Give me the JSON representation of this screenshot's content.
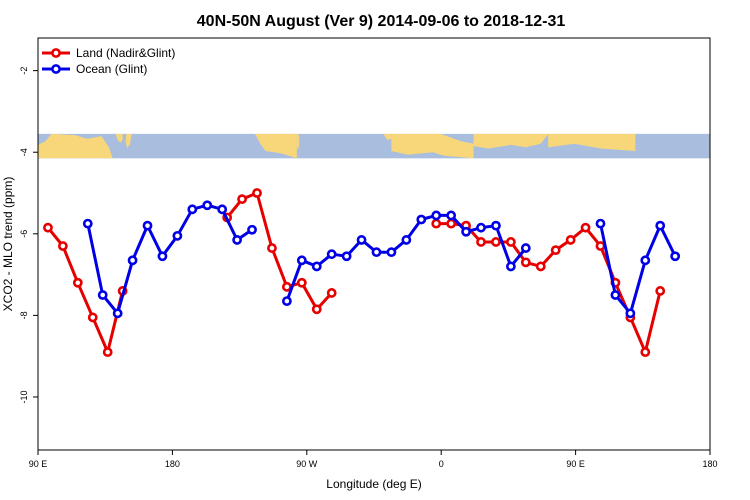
{
  "chart_data": {
    "type": "line",
    "title": "40N-50N August (Ver 9)   2014-09-06 to 2018-12-31",
    "xlabel": "Longitude (deg E)",
    "ylabel": "XCO2 - MLO trend (ppm)",
    "xlim": [
      -90,
      180
    ],
    "ylim": [
      -11.3,
      -1.2
    ],
    "x_ticks": [
      {
        "value": -90,
        "label": "90 E"
      },
      {
        "value": -36,
        "label": "180"
      },
      {
        "value": 18,
        "label": "90 W"
      },
      {
        "value": 72,
        "label": "0"
      },
      {
        "value": 126,
        "label": "90 E"
      },
      {
        "value": 180,
        "label": "180"
      }
    ],
    "y_ticks": [
      {
        "value": -2,
        "label": "-2"
      },
      {
        "value": -4,
        "label": "-4"
      },
      {
        "value": -6,
        "label": "-6"
      },
      {
        "value": -8,
        "label": "-8"
      },
      {
        "value": -10,
        "label": "-10"
      }
    ],
    "map_strip": {
      "y_range": [
        -3.55,
        -4.15
      ],
      "ocean_color": "#a9bede",
      "land_color": "#f7d77a"
    },
    "legend": {
      "position": "top-left"
    },
    "series": [
      {
        "name": "Land (Nadir&Glint)",
        "color": "#e60000",
        "segments": [
          [
            [
              -86,
              -5.85
            ],
            [
              -80,
              -6.3
            ],
            [
              -74,
              -7.2
            ],
            [
              -68,
              -8.05
            ],
            [
              -62,
              -8.9
            ],
            [
              -56,
              -7.4
            ]
          ],
          [
            [
              -14,
              -5.6
            ],
            [
              -8,
              -5.15
            ],
            [
              -2,
              -5.0
            ],
            [
              4,
              -6.35
            ],
            [
              10,
              -7.3
            ],
            [
              16,
              -7.2
            ],
            [
              22,
              -7.85
            ],
            [
              28,
              -7.45
            ]
          ],
          [
            [
              70,
              -5.75
            ],
            [
              76,
              -5.75
            ],
            [
              82,
              -5.8
            ],
            [
              88,
              -6.2
            ],
            [
              94,
              -6.2
            ],
            [
              100,
              -6.2
            ],
            [
              106,
              -6.7
            ],
            [
              112,
              -6.8
            ],
            [
              118,
              -6.4
            ],
            [
              124,
              -6.15
            ],
            [
              130,
              -5.85
            ],
            [
              136,
              -6.3
            ],
            [
              142,
              -7.2
            ],
            [
              148,
              -8.05
            ],
            [
              154,
              -8.9
            ],
            [
              160,
              -7.4
            ]
          ]
        ]
      },
      {
        "name": "Ocean (Glint)",
        "color": "#0000e6",
        "segments": [
          [
            [
              -70,
              -5.75
            ],
            [
              -64,
              -7.5
            ],
            [
              -58,
              -7.95
            ],
            [
              -52,
              -6.65
            ],
            [
              -46,
              -5.8
            ],
            [
              -40,
              -6.55
            ],
            [
              -34,
              -6.05
            ],
            [
              -28,
              -5.4
            ],
            [
              -22,
              -5.3
            ],
            [
              -16,
              -5.4
            ],
            [
              -10,
              -6.15
            ],
            [
              -4,
              -5.9
            ]
          ],
          [
            [
              10,
              -7.65
            ],
            [
              16,
              -6.65
            ],
            [
              22,
              -6.8
            ],
            [
              28,
              -6.5
            ],
            [
              34,
              -6.55
            ],
            [
              40,
              -6.15
            ],
            [
              46,
              -6.45
            ],
            [
              52,
              -6.45
            ],
            [
              58,
              -6.15
            ],
            [
              64,
              -5.65
            ],
            [
              70,
              -5.55
            ],
            [
              76,
              -5.55
            ],
            [
              82,
              -5.95
            ],
            [
              88,
              -5.85
            ],
            [
              94,
              -5.8
            ],
            [
              100,
              -6.8
            ],
            [
              106,
              -6.35
            ]
          ],
          [
            [
              136,
              -5.75
            ],
            [
              142,
              -7.5
            ],
            [
              148,
              -7.95
            ],
            [
              154,
              -6.65
            ],
            [
              160,
              -5.8
            ],
            [
              166,
              -6.55
            ]
          ]
        ]
      }
    ]
  }
}
